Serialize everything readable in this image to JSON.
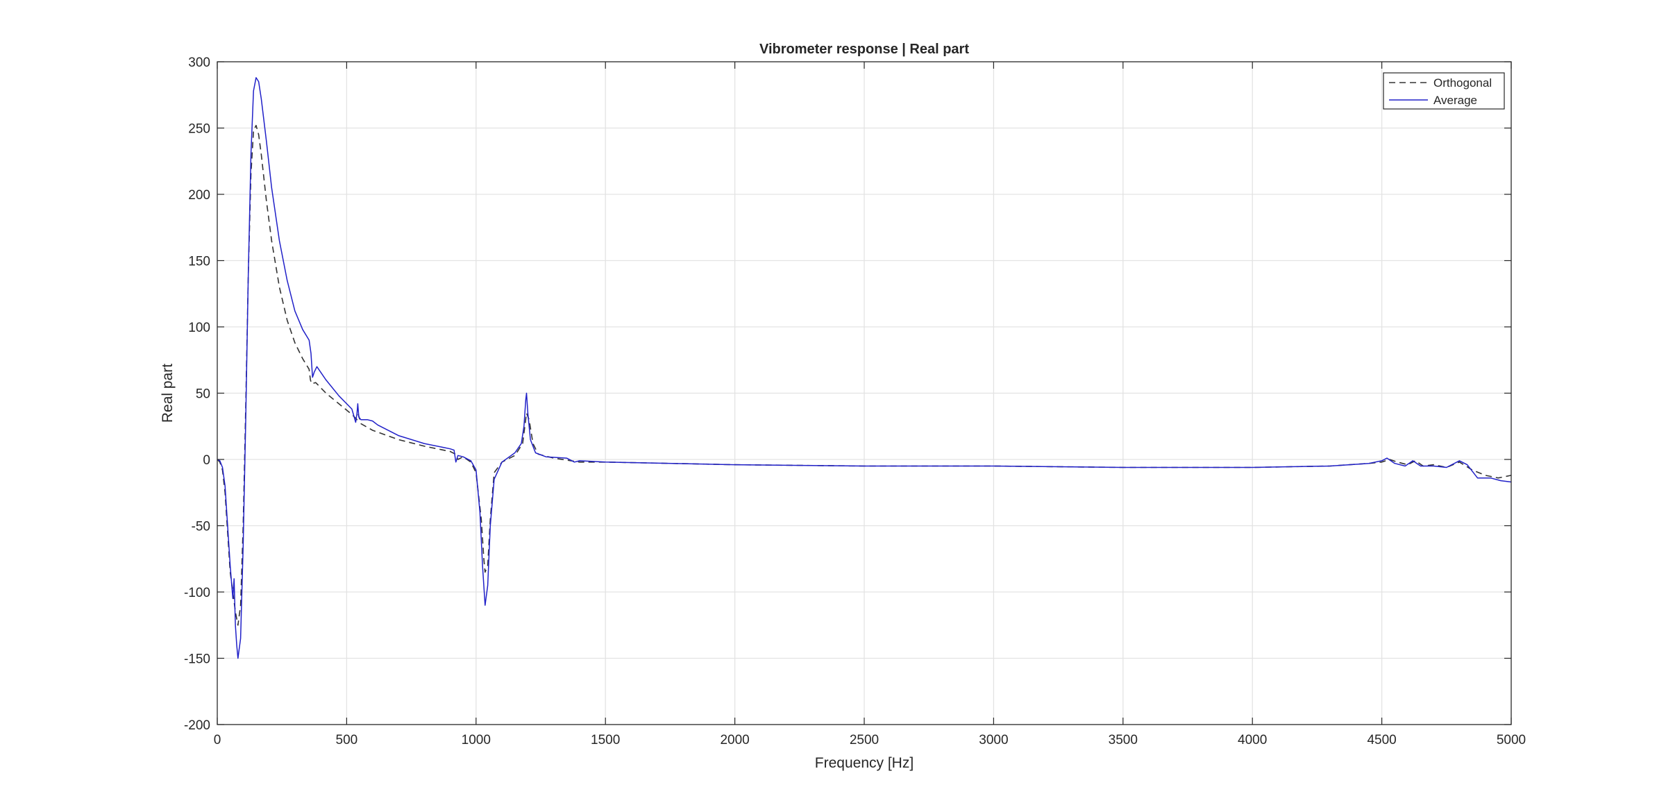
{
  "chart_data": {
    "type": "line",
    "title": "Vibrometer response | Real part",
    "xlabel": "Frequency [Hz]",
    "ylabel": "Real part",
    "xlim": [
      0,
      5000
    ],
    "ylim": [
      -200,
      300
    ],
    "xticks": [
      0,
      500,
      1000,
      1500,
      2000,
      2500,
      3000,
      3500,
      4000,
      4500,
      5000
    ],
    "yticks": [
      -200,
      -150,
      -100,
      -50,
      0,
      50,
      100,
      150,
      200,
      250,
      300
    ],
    "grid": true,
    "legend_position": "top-right",
    "series": [
      {
        "name": "Orthogonal",
        "color": "#333333",
        "style": "dashed",
        "points": [
          [
            0,
            0
          ],
          [
            10,
            -2
          ],
          [
            20,
            -8
          ],
          [
            30,
            -25
          ],
          [
            40,
            -55
          ],
          [
            50,
            -85
          ],
          [
            60,
            -100
          ],
          [
            70,
            -115
          ],
          [
            80,
            -125
          ],
          [
            90,
            -110
          ],
          [
            100,
            -50
          ],
          [
            110,
            40
          ],
          [
            120,
            140
          ],
          [
            130,
            215
          ],
          [
            140,
            248
          ],
          [
            150,
            252
          ],
          [
            160,
            245
          ],
          [
            170,
            230
          ],
          [
            190,
            195
          ],
          [
            210,
            165
          ],
          [
            240,
            130
          ],
          [
            270,
            105
          ],
          [
            300,
            88
          ],
          [
            330,
            76
          ],
          [
            355,
            68
          ],
          [
            360,
            60
          ],
          [
            365,
            57
          ],
          [
            380,
            58
          ],
          [
            420,
            50
          ],
          [
            470,
            42
          ],
          [
            520,
            34
          ],
          [
            540,
            30
          ],
          [
            545,
            34
          ],
          [
            555,
            27
          ],
          [
            600,
            22
          ],
          [
            700,
            15
          ],
          [
            800,
            10
          ],
          [
            900,
            6
          ],
          [
            920,
            4
          ],
          [
            930,
            0
          ],
          [
            950,
            2
          ],
          [
            980,
            -2
          ],
          [
            1000,
            -10
          ],
          [
            1020,
            -45
          ],
          [
            1030,
            -75
          ],
          [
            1035,
            -85
          ],
          [
            1045,
            -80
          ],
          [
            1055,
            -45
          ],
          [
            1070,
            -10
          ],
          [
            1100,
            -2
          ],
          [
            1150,
            3
          ],
          [
            1180,
            12
          ],
          [
            1195,
            35
          ],
          [
            1205,
            30
          ],
          [
            1220,
            12
          ],
          [
            1240,
            4
          ],
          [
            1300,
            1
          ],
          [
            1400,
            -2
          ],
          [
            1500,
            -2
          ],
          [
            2000,
            -4
          ],
          [
            2500,
            -5
          ],
          [
            3000,
            -5
          ],
          [
            3500,
            -6
          ],
          [
            4000,
            -6
          ],
          [
            4300,
            -5
          ],
          [
            4450,
            -3
          ],
          [
            4500,
            -2
          ],
          [
            4530,
            0
          ],
          [
            4560,
            -2
          ],
          [
            4600,
            -4
          ],
          [
            4630,
            -1
          ],
          [
            4660,
            -5
          ],
          [
            4700,
            -4
          ],
          [
            4750,
            -6
          ],
          [
            4800,
            -2
          ],
          [
            4850,
            -8
          ],
          [
            4900,
            -12
          ],
          [
            4950,
            -14
          ],
          [
            5000,
            -12
          ]
        ]
      },
      {
        "name": "Average",
        "color": "#2020c8",
        "style": "solid",
        "points": [
          [
            0,
            0
          ],
          [
            10,
            -1
          ],
          [
            20,
            -6
          ],
          [
            30,
            -20
          ],
          [
            40,
            -50
          ],
          [
            50,
            -80
          ],
          [
            60,
            -105
          ],
          [
            65,
            -90
          ],
          [
            70,
            -125
          ],
          [
            75,
            -140
          ],
          [
            80,
            -150
          ],
          [
            90,
            -135
          ],
          [
            100,
            -65
          ],
          [
            110,
            30
          ],
          [
            120,
            140
          ],
          [
            130,
            230
          ],
          [
            140,
            278
          ],
          [
            150,
            288
          ],
          [
            160,
            285
          ],
          [
            170,
            272
          ],
          [
            190,
            240
          ],
          [
            210,
            205
          ],
          [
            240,
            165
          ],
          [
            270,
            135
          ],
          [
            300,
            112
          ],
          [
            330,
            98
          ],
          [
            355,
            90
          ],
          [
            362,
            80
          ],
          [
            368,
            62
          ],
          [
            375,
            66
          ],
          [
            385,
            70
          ],
          [
            420,
            60
          ],
          [
            470,
            48
          ],
          [
            520,
            38
          ],
          [
            535,
            28
          ],
          [
            540,
            35
          ],
          [
            543,
            42
          ],
          [
            547,
            32
          ],
          [
            555,
            30
          ],
          [
            580,
            30
          ],
          [
            600,
            29
          ],
          [
            620,
            26
          ],
          [
            700,
            18
          ],
          [
            800,
            12
          ],
          [
            900,
            8
          ],
          [
            915,
            7
          ],
          [
            922,
            -2
          ],
          [
            930,
            3
          ],
          [
            950,
            2
          ],
          [
            980,
            -1
          ],
          [
            1000,
            -8
          ],
          [
            1015,
            -40
          ],
          [
            1025,
            -80
          ],
          [
            1035,
            -110
          ],
          [
            1045,
            -95
          ],
          [
            1055,
            -50
          ],
          [
            1070,
            -15
          ],
          [
            1100,
            -2
          ],
          [
            1150,
            5
          ],
          [
            1175,
            12
          ],
          [
            1185,
            25
          ],
          [
            1192,
            45
          ],
          [
            1195,
            50
          ],
          [
            1200,
            35
          ],
          [
            1210,
            15
          ],
          [
            1230,
            5
          ],
          [
            1270,
            2
          ],
          [
            1350,
            1
          ],
          [
            1380,
            -2
          ],
          [
            1400,
            -1
          ],
          [
            1500,
            -2
          ],
          [
            2000,
            -4
          ],
          [
            2500,
            -5
          ],
          [
            3000,
            -5
          ],
          [
            3500,
            -6
          ],
          [
            4000,
            -6
          ],
          [
            4300,
            -5
          ],
          [
            4450,
            -3
          ],
          [
            4500,
            -1
          ],
          [
            4520,
            1
          ],
          [
            4550,
            -3
          ],
          [
            4590,
            -5
          ],
          [
            4620,
            -1
          ],
          [
            4650,
            -5
          ],
          [
            4700,
            -5
          ],
          [
            4750,
            -6
          ],
          [
            4800,
            -1
          ],
          [
            4830,
            -4
          ],
          [
            4870,
            -14
          ],
          [
            4920,
            -14
          ],
          [
            4960,
            -16
          ],
          [
            5000,
            -17
          ]
        ]
      }
    ]
  }
}
